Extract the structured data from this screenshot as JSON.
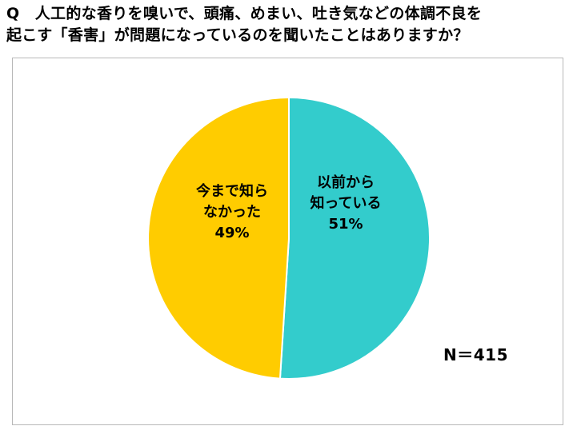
{
  "question": {
    "line1": "Q　人工的な香りを嗅いで、頭痛、めまい、吐き気などの体調不良を",
    "line2": "起こす「香害」が問題になっているのを聞いたことはありますか？"
  },
  "sample_size": "N＝415",
  "chart_data": {
    "type": "pie",
    "slices": [
      {
        "label_lines": [
          "以前から",
          "知っている"
        ],
        "value_label": "51%",
        "value": 51,
        "color": "#33cccc"
      },
      {
        "label_lines": [
          "今まで知ら",
          "なかった"
        ],
        "value_label": "49%",
        "value": 49,
        "color": "#ffcc00"
      }
    ],
    "start_angle": "12 o'clock",
    "direction": "clockwise",
    "slice_border_color": "#ffffff"
  }
}
